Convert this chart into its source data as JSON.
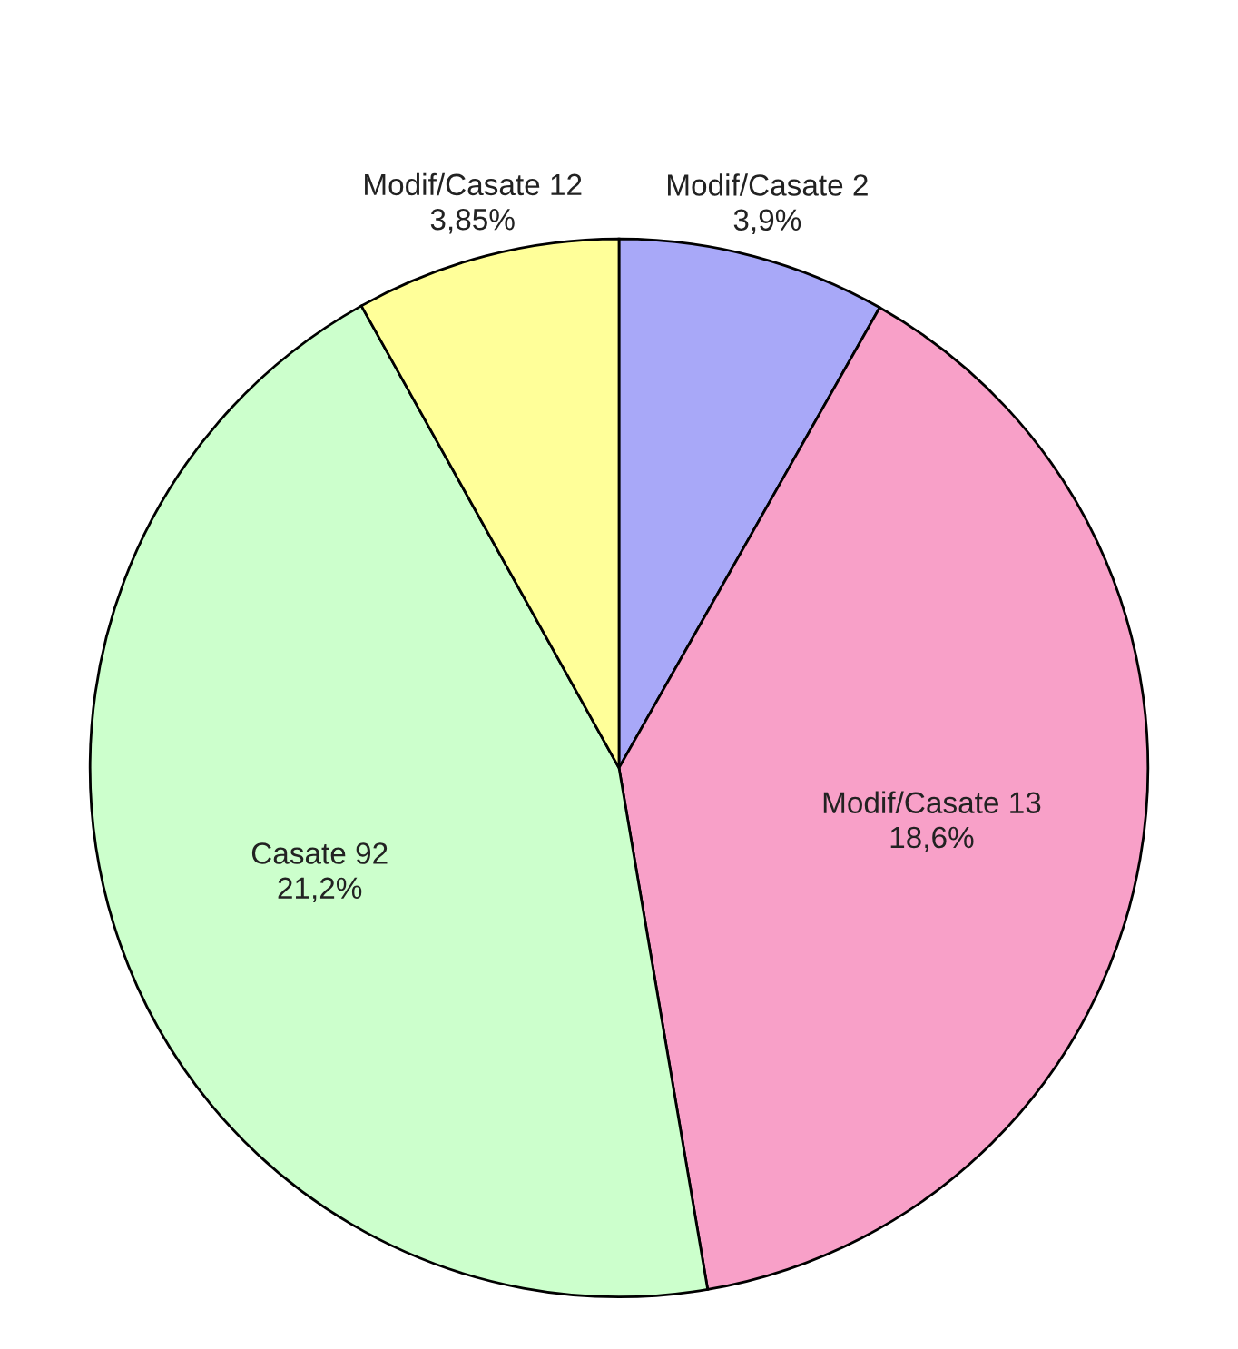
{
  "chart_data": {
    "type": "pie",
    "categories": [
      "Modif/Casate 2",
      "Modif/Casate 13",
      "Casate 92",
      "Modif/Casate 12"
    ],
    "values": [
      3.9,
      18.6,
      21.2,
      3.85
    ],
    "value_labels": [
      "3,9%",
      "18,6%",
      "21,2%",
      "3,85%"
    ],
    "colors": [
      "#a8a8f8",
      "#f8a0c8",
      "#ccffcc",
      "#ffff99"
    ]
  }
}
